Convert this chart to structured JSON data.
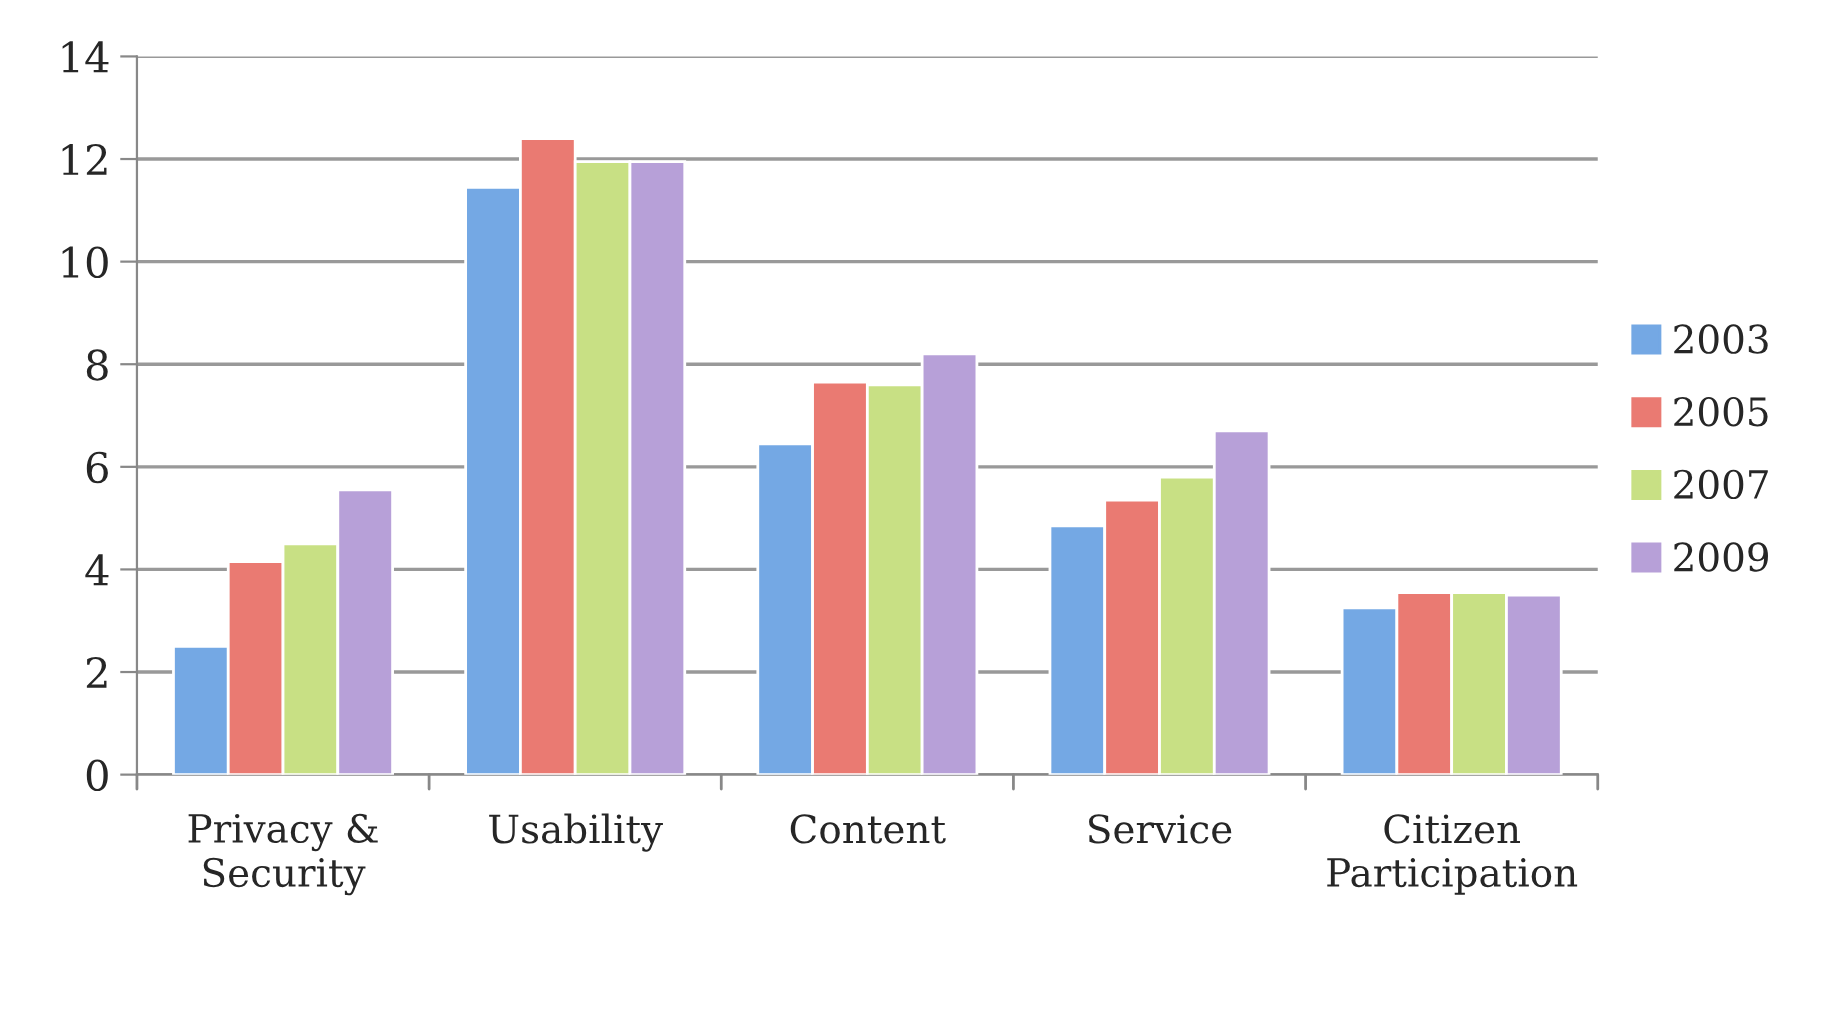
{
  "chart_data": {
    "type": "bar",
    "categories": [
      "Privacy &\nSecurity",
      "Usability",
      "Content",
      "Service",
      "Citizen\nParticipation"
    ],
    "series": [
      {
        "name": "2003",
        "color": "#74a8e4",
        "values": [
          2.5,
          11.45,
          6.45,
          4.85,
          3.25
        ]
      },
      {
        "name": "2005",
        "color": "#ea7a72",
        "values": [
          4.15,
          12.4,
          7.65,
          5.35,
          3.55
        ]
      },
      {
        "name": "2007",
        "color": "#c8e084",
        "values": [
          4.5,
          11.95,
          7.6,
          5.8,
          3.55
        ]
      },
      {
        "name": "2009",
        "color": "#b7a0d8",
        "values": [
          5.55,
          11.95,
          8.2,
          6.7,
          3.5
        ]
      }
    ],
    "ylim": [
      0,
      14
    ],
    "yticks": [
      0,
      2,
      4,
      6,
      8,
      10,
      12,
      14
    ],
    "grid": "y",
    "legend": "right"
  }
}
